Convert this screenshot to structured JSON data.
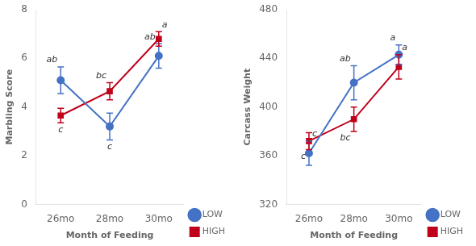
{
  "chart_data": [
    {
      "type": "line",
      "xlabel": "Month of Feeding",
      "ylabel": "Marbling Score",
      "categories": [
        "26mo",
        "28mo",
        "30mo"
      ],
      "series": [
        {
          "name": "LOW",
          "color": "#4472c4",
          "marker": "circle",
          "values": [
            5.1,
            3.2,
            6.1
          ],
          "errors": [
            0.55,
            0.55,
            0.5
          ]
        },
        {
          "name": "HIGH",
          "color": "#c0001a",
          "marker": "square",
          "values": [
            3.65,
            4.65,
            6.8
          ],
          "errors": [
            0.3,
            0.35,
            0.3
          ]
        }
      ],
      "ylim": [
        0,
        8
      ],
      "yticks": [
        0,
        2,
        4,
        6,
        8
      ],
      "grid": false,
      "legend": "lower right",
      "annotations": [
        {
          "text": "ab",
          "series": "LOW",
          "category": "26mo",
          "position": "above left"
        },
        {
          "text": "c",
          "series": "LOW",
          "category": "28mo",
          "position": "below"
        },
        {
          "text": "ab",
          "series": "LOW",
          "category": "30mo",
          "position": "above left"
        },
        {
          "text": "c",
          "series": "HIGH",
          "category": "26mo",
          "position": "below"
        },
        {
          "text": "bc",
          "series": "HIGH",
          "category": "28mo",
          "position": "above left"
        },
        {
          "text": "a",
          "series": "HIGH",
          "category": "30mo",
          "position": "above right"
        }
      ]
    },
    {
      "type": "line",
      "xlabel": "Month of Feeding",
      "ylabel": "Carcass Weight",
      "categories": [
        "26mo",
        "28mo",
        "30mo"
      ],
      "series": [
        {
          "name": "LOW",
          "color": "#4472c4",
          "marker": "circle",
          "values": [
            362,
            420,
            443
          ],
          "errors": [
            10,
            14,
            8
          ]
        },
        {
          "name": "HIGH",
          "color": "#c0001a",
          "marker": "square",
          "values": [
            372,
            390,
            433
          ],
          "errors": [
            7,
            10,
            10
          ]
        }
      ],
      "ylim": [
        320,
        480
      ],
      "yticks": [
        320,
        360,
        400,
        440,
        480
      ],
      "grid": false,
      "legend": "lower right",
      "annotations": [
        {
          "text": "c",
          "series": "LOW",
          "category": "26mo",
          "position": "above right"
        },
        {
          "text": "ab",
          "series": "LOW",
          "category": "28mo",
          "position": "above left"
        },
        {
          "text": "a",
          "series": "LOW",
          "category": "30mo",
          "position": "above left"
        },
        {
          "text": "c",
          "series": "HIGH",
          "category": "26mo",
          "position": "below left"
        },
        {
          "text": "bc",
          "series": "HIGH",
          "category": "28mo",
          "position": "below left"
        },
        {
          "text": "a",
          "series": "HIGH",
          "category": "30mo",
          "position": "above right"
        }
      ]
    }
  ]
}
